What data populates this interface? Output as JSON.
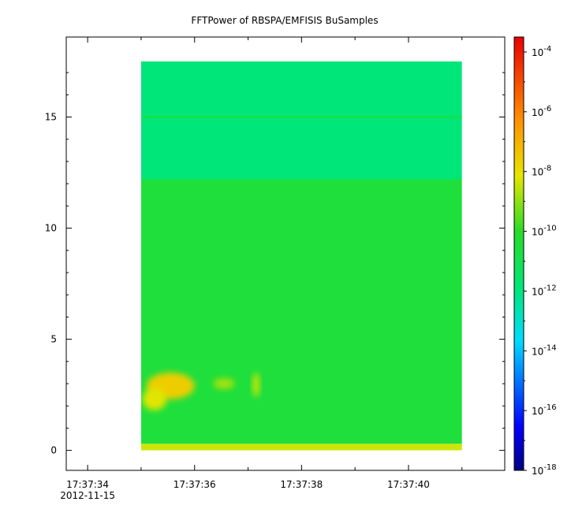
{
  "chart_data": {
    "type": "heatmap",
    "title": "FFTPower of RBSPA/EMFISIS  BuSamples",
    "xlabel": "",
    "ylabel": "",
    "x_ticks": [
      {
        "label": "17:37:34",
        "t": 0
      },
      {
        "label": "17:37:36",
        "t": 2
      },
      {
        "label": "17:37:38",
        "t": 4
      },
      {
        "label": "17:37:40",
        "t": 6
      }
    ],
    "x_minor_ticks": [
      1,
      3,
      5,
      7
    ],
    "x_date_label": "2012-11-15",
    "xlim": [
      -0.4,
      7.8
    ],
    "data_x_range": [
      1.0,
      7.0
    ],
    "y_ticks": [
      0,
      5,
      10,
      15
    ],
    "ylim": [
      -0.9,
      18.6
    ],
    "data_y_range": [
      0.0,
      17.5
    ],
    "background_bands": [
      {
        "y_range": [
          0.0,
          0.3
        ],
        "log10_power": -8.4
      },
      {
        "y_range": [
          0.3,
          12.2
        ],
        "log10_power": -10.5
      },
      {
        "y_range": [
          12.2,
          17.5
        ],
        "log10_power": -11.9
      }
    ],
    "line_feature": {
      "y": 15.0,
      "log10_power": -11.0
    },
    "blobs": [
      {
        "x_center": 1.55,
        "x_width": 0.9,
        "y_center": 2.9,
        "y_height": 1.2,
        "log10_power": -7.6
      },
      {
        "x_center": 1.25,
        "x_width": 0.45,
        "y_center": 2.3,
        "y_height": 1.0,
        "log10_power": -8.2
      },
      {
        "x_center": 2.55,
        "x_width": 0.4,
        "y_center": 3.0,
        "y_height": 0.5,
        "log10_power": -8.8
      },
      {
        "x_center": 3.15,
        "x_width": 0.12,
        "y_center": 2.95,
        "y_height": 1.1,
        "log10_power": -8.3
      }
    ],
    "colorbar": {
      "scale": "log",
      "range_log10": [
        -18.0,
        -3.5
      ],
      "ticks": [
        {
          "base": "10",
          "exp": "-4",
          "value": -4
        },
        {
          "base": "10",
          "exp": "-6",
          "value": -6
        },
        {
          "base": "10",
          "exp": "-8",
          "value": -8
        },
        {
          "base": "10",
          "exp": "-10",
          "value": -10
        },
        {
          "base": "10",
          "exp": "-12",
          "value": -12
        },
        {
          "base": "10",
          "exp": "-14",
          "value": -14
        },
        {
          "base": "10",
          "exp": "-16",
          "value": -16
        },
        {
          "base": "10",
          "exp": "-18",
          "value": -18
        }
      ],
      "colormap": "rainbow"
    }
  }
}
